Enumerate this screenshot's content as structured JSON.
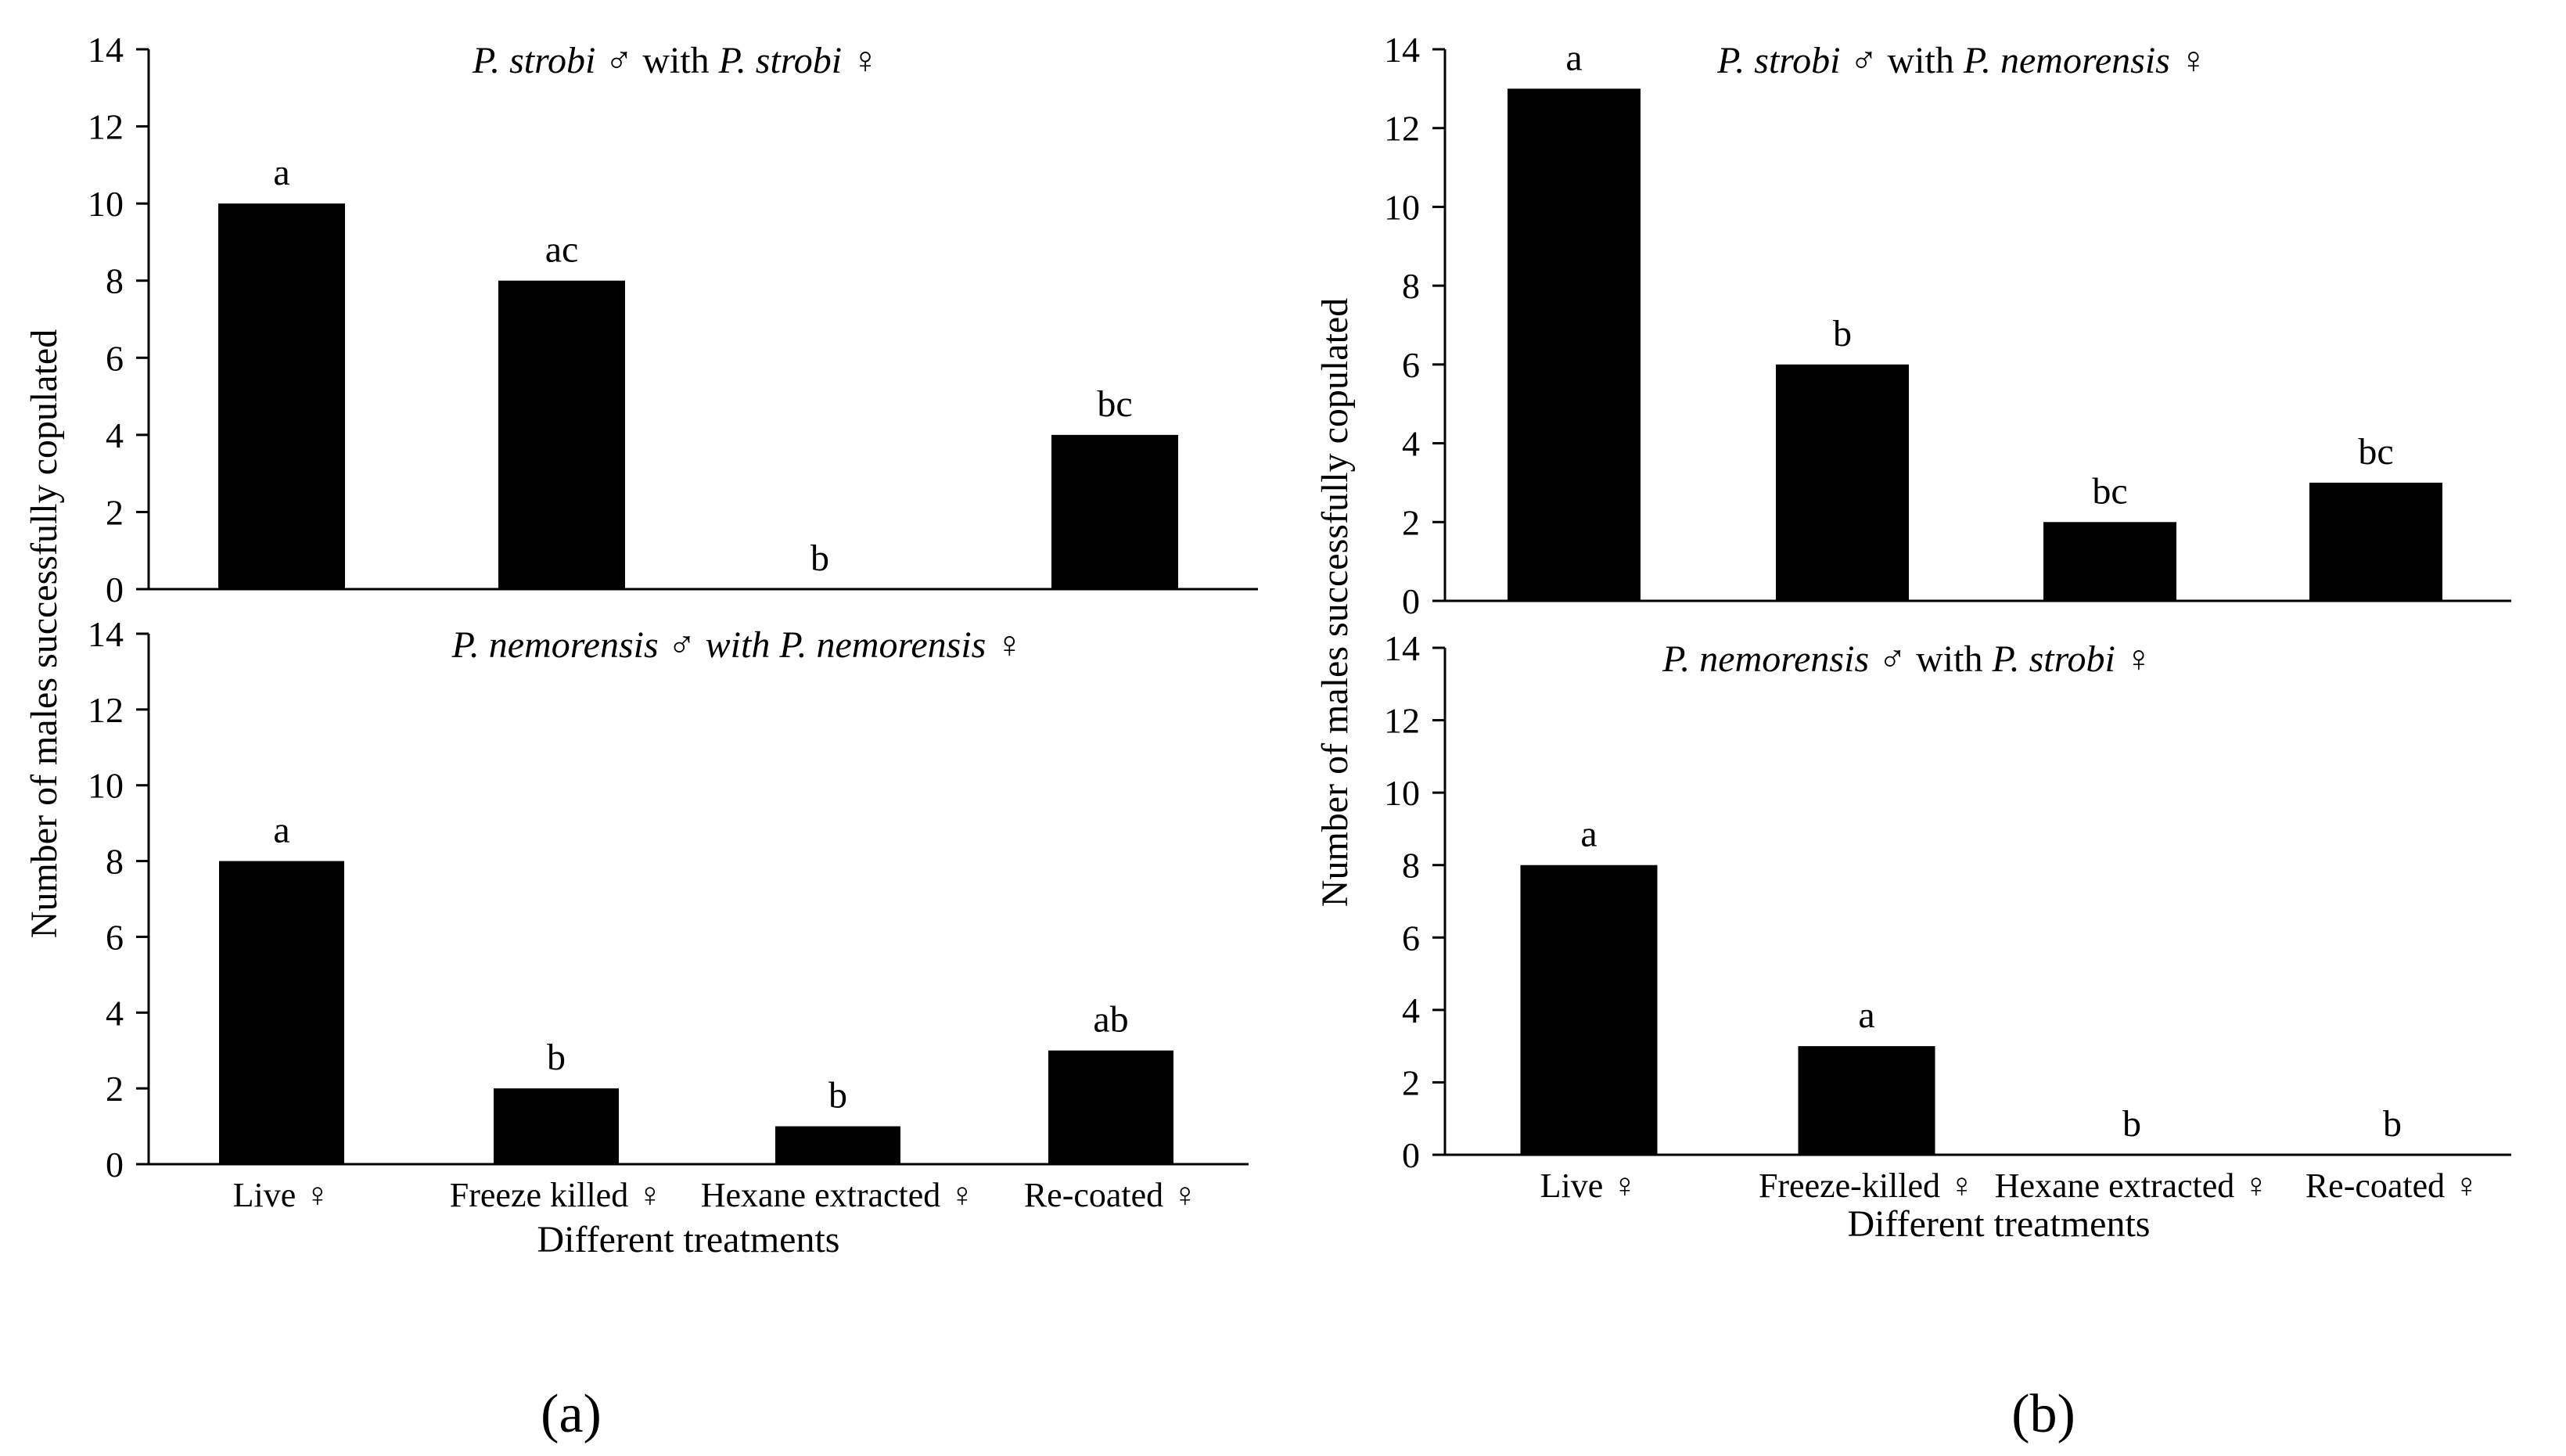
{
  "figure": {
    "shared": {
      "ylabel": "Number of males successfully copulated",
      "xlabel": "Different treatments",
      "ylim": [
        0,
        14
      ],
      "yticks": [
        0,
        2,
        4,
        6,
        8,
        10,
        12,
        14
      ]
    },
    "panel_labels": [
      "(a)",
      "(b)"
    ]
  },
  "chart_data": [
    {
      "type": "bar",
      "panel": "a",
      "position": "top",
      "title_parts": [
        "P. strobi",
        " ♂ with ",
        "P. strobi",
        " ♀"
      ],
      "title_italic": [
        true,
        false,
        true,
        false
      ],
      "categories": [
        "Live ♀",
        "Freeze killed ♀",
        "Hexane extracted ♀",
        "Re-coated ♀"
      ],
      "values": [
        10,
        8,
        0,
        4
      ],
      "letters": [
        "a",
        "ac",
        "b",
        "bc"
      ],
      "ylim": [
        0,
        14
      ],
      "bar_color": "#000000",
      "show_categories": false
    },
    {
      "type": "bar",
      "panel": "a",
      "position": "bottom",
      "title_parts": [
        "P. nemorensis ♂ with P. nemorensis ♀"
      ],
      "title_italic": [
        true
      ],
      "categories": [
        "Live ♀",
        "Freeze killed ♀",
        "Hexane extracted ♀",
        "Re-coated ♀"
      ],
      "values": [
        8,
        2,
        1,
        3
      ],
      "letters": [
        "a",
        "b",
        "b",
        "ab"
      ],
      "ylim": [
        0,
        14
      ],
      "bar_color": "#000000",
      "show_categories": true
    },
    {
      "type": "bar",
      "panel": "b",
      "position": "top",
      "title_parts": [
        "P. strobi",
        " ♂ with ",
        "P. nemorensis",
        " ♀"
      ],
      "title_italic": [
        true,
        false,
        true,
        false
      ],
      "categories": [
        "Live ♀",
        "Freeze-killed ♀",
        "Hexane extracted ♀",
        "Re-coated ♀"
      ],
      "values": [
        13,
        6,
        2,
        3
      ],
      "letters": [
        "a",
        "b",
        "bc",
        "bc"
      ],
      "ylim": [
        0,
        14
      ],
      "bar_color": "#000000",
      "show_categories": false
    },
    {
      "type": "bar",
      "panel": "b",
      "position": "bottom",
      "title_parts": [
        "P. nemorensis",
        " ♂ with ",
        "P. strobi",
        " ♀"
      ],
      "title_italic": [
        true,
        false,
        true,
        false
      ],
      "categories": [
        "Live ♀",
        "Freeze-killed ♀",
        "Hexane extracted ♀",
        "Re-coated ♀"
      ],
      "values": [
        8,
        3,
        0,
        0
      ],
      "letters": [
        "a",
        "a",
        "b",
        "b"
      ],
      "ylim": [
        0,
        14
      ],
      "bar_color": "#000000",
      "show_categories": true
    }
  ]
}
